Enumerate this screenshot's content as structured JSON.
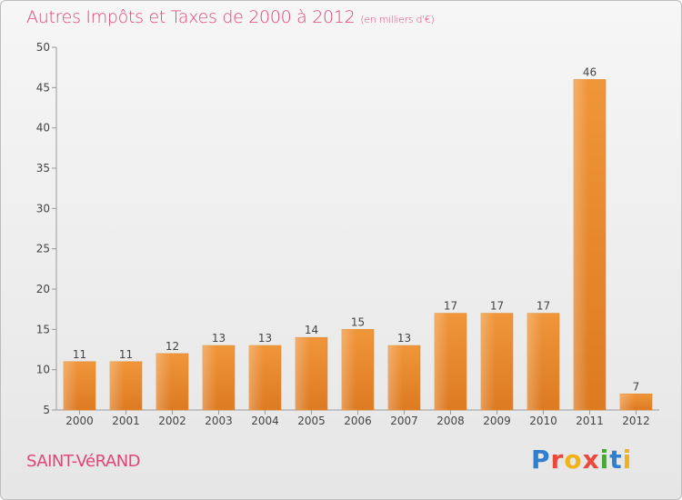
{
  "chart_data": {
    "type": "bar",
    "title": "Autres Impôts et Taxes de 2000 à 2012",
    "unit": "(en milliers d'€)",
    "categories": [
      "2000",
      "2001",
      "2002",
      "2003",
      "2004",
      "2005",
      "2006",
      "2007",
      "2008",
      "2009",
      "2010",
      "2011",
      "2012"
    ],
    "values": [
      11,
      11,
      12,
      13,
      13,
      14,
      15,
      13,
      17,
      17,
      17,
      46,
      7
    ],
    "ylim": [
      5,
      50
    ],
    "yticks": [
      5,
      10,
      15,
      20,
      25,
      30,
      35,
      40,
      45,
      50
    ],
    "grid": false,
    "bar_color": "#f0963a",
    "bar_color_dark": "#dd7a22"
  },
  "footer": {
    "commune": "SAINT-VéRAND",
    "logo_letters": [
      {
        "ch": "P",
        "color": "#2f7fd0"
      },
      {
        "ch": "r",
        "color": "#e94a3c"
      },
      {
        "ch": "o",
        "color": "#f2b21a"
      },
      {
        "ch": "x",
        "color": "#e94a3c"
      },
      {
        "ch": "i",
        "color": "#4aa63a"
      },
      {
        "ch": "t",
        "color": "#2f7fd0"
      },
      {
        "ch": "i",
        "color": "#f2b21a"
      }
    ]
  }
}
